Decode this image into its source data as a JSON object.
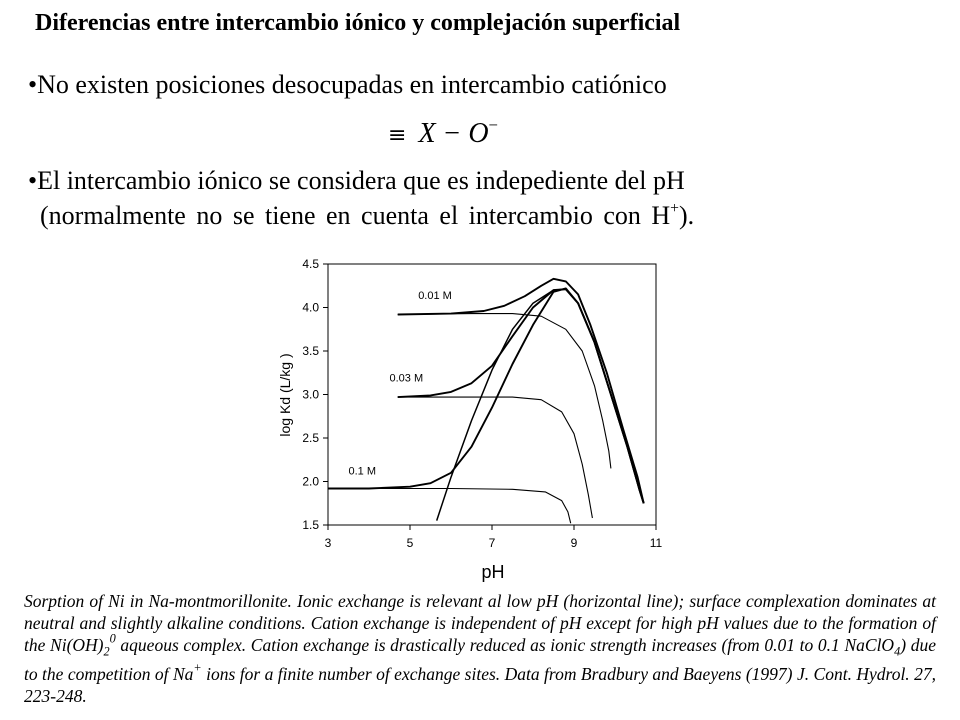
{
  "heading": "Diferencias entre intercambio iónico y complejación superficial",
  "bullets": {
    "b1": "•No existen posiciones desocupadas en intercambio catiónico",
    "b2_line1": "•El intercambio iónico se considera que es indepediente del pH",
    "b2_line2_prefix": "(normalmente no se tiene en cuenta el intercambio con H",
    "b2_line2_sup": "+",
    "b2_line2_suffix": ")."
  },
  "formula": {
    "symbol": "≡",
    "expr": "X − O",
    "sup": "−"
  },
  "caption": {
    "part1": "Sorption of Ni in Na-montmorillonite. Ionic exchange is relevant al low pH (horizontal line); surface complexation dominates at neutral and slightly alkaline conditions. Cation exchange is independent of pH except for high pH values due to the formation of the Ni(OH)",
    "sub1": "2",
    "sup1": "0",
    "part2": " aqueous complex. Cation exchange is drastically reduced as ionic strength increases (from 0.01 to 0.1 NaClO",
    "sub2": "4",
    "part3": ") due to the competition of Na",
    "sup2": "+",
    "part4": " ions for a finite number of exchange sites. Data from Bradbury and Baeyens (1997) J. Cont. Hydrol. 27, 223-248."
  },
  "chart_data": {
    "type": "line",
    "xlabel": "pH",
    "ylabel": "log Kd (L/kg )",
    "xlim": [
      3,
      11
    ],
    "ylim": [
      1.5,
      4.5
    ],
    "xticks": [
      "3",
      "5",
      "7",
      "9",
      "11"
    ],
    "yticks": [
      "1.5",
      "2.0",
      "2.5",
      "3.0",
      "3.5",
      "4.0",
      "4.5"
    ],
    "grid": false,
    "legend": "none",
    "annotations": [
      {
        "text": "0.01 M",
        "x": 5.2,
        "y": 4.1
      },
      {
        "text": "0.03 M",
        "x": 4.5,
        "y": 3.15
      },
      {
        "text": "0.1 M",
        "x": 3.5,
        "y": 2.08
      }
    ],
    "series": [
      {
        "style": "total",
        "points": [
          [
            4.7,
            3.92
          ],
          [
            6.0,
            3.93
          ],
          [
            6.8,
            3.96
          ],
          [
            7.3,
            4.02
          ],
          [
            7.8,
            4.13
          ],
          [
            8.2,
            4.25
          ],
          [
            8.5,
            4.33
          ],
          [
            8.8,
            4.3
          ],
          [
            9.1,
            4.15
          ],
          [
            9.4,
            3.8
          ],
          [
            9.8,
            3.25
          ],
          [
            10.2,
            2.6
          ],
          [
            10.55,
            2.05
          ],
          [
            10.7,
            1.75
          ]
        ]
      },
      {
        "style": "total",
        "points": [
          [
            4.7,
            2.97
          ],
          [
            5.5,
            2.99
          ],
          [
            6.0,
            3.03
          ],
          [
            6.5,
            3.13
          ],
          [
            7.0,
            3.33
          ],
          [
            7.5,
            3.67
          ],
          [
            8.0,
            4.0
          ],
          [
            8.5,
            4.2
          ],
          [
            8.8,
            4.21
          ],
          [
            9.1,
            4.05
          ],
          [
            9.5,
            3.6
          ],
          [
            9.9,
            3.0
          ],
          [
            10.3,
            2.4
          ],
          [
            10.6,
            1.9
          ],
          [
            10.7,
            1.75
          ]
        ]
      },
      {
        "style": "total",
        "points": [
          [
            3.0,
            1.92
          ],
          [
            4.0,
            1.92
          ],
          [
            5.0,
            1.94
          ],
          [
            5.5,
            1.98
          ],
          [
            6.0,
            2.1
          ],
          [
            6.5,
            2.4
          ],
          [
            7.0,
            2.85
          ],
          [
            7.5,
            3.35
          ],
          [
            8.0,
            3.8
          ],
          [
            8.5,
            4.18
          ],
          [
            8.8,
            4.22
          ],
          [
            9.1,
            4.05
          ],
          [
            9.5,
            3.6
          ],
          [
            9.9,
            3.0
          ],
          [
            10.3,
            2.4
          ],
          [
            10.6,
            1.9
          ],
          [
            10.7,
            1.75
          ]
        ]
      },
      {
        "style": "exchange",
        "points": [
          [
            4.7,
            3.92
          ],
          [
            6.5,
            3.93
          ],
          [
            7.5,
            3.93
          ],
          [
            8.2,
            3.9
          ],
          [
            8.8,
            3.75
          ],
          [
            9.2,
            3.5
          ],
          [
            9.5,
            3.1
          ],
          [
            9.7,
            2.7
          ],
          [
            9.85,
            2.35
          ],
          [
            9.9,
            2.15
          ]
        ]
      },
      {
        "style": "exchange",
        "points": [
          [
            4.7,
            2.97
          ],
          [
            6.5,
            2.97
          ],
          [
            7.5,
            2.97
          ],
          [
            8.2,
            2.94
          ],
          [
            8.7,
            2.8
          ],
          [
            9.0,
            2.55
          ],
          [
            9.2,
            2.2
          ],
          [
            9.35,
            1.85
          ],
          [
            9.45,
            1.58
          ]
        ]
      },
      {
        "style": "exchange",
        "points": [
          [
            3.0,
            1.92
          ],
          [
            6.0,
            1.92
          ],
          [
            7.5,
            1.91
          ],
          [
            8.3,
            1.88
          ],
          [
            8.7,
            1.78
          ],
          [
            8.85,
            1.65
          ],
          [
            8.92,
            1.52
          ]
        ]
      },
      {
        "style": "complexation",
        "points": [
          [
            5.65,
            1.55
          ],
          [
            6.0,
            2.05
          ],
          [
            6.5,
            2.7
          ],
          [
            7.0,
            3.28
          ],
          [
            7.5,
            3.75
          ],
          [
            8.0,
            4.05
          ],
          [
            8.5,
            4.2
          ],
          [
            8.8,
            4.21
          ],
          [
            9.1,
            4.05
          ],
          [
            9.5,
            3.6
          ],
          [
            9.9,
            3.0
          ],
          [
            10.3,
            2.4
          ],
          [
            10.6,
            1.9
          ],
          [
            10.7,
            1.75
          ]
        ]
      }
    ]
  }
}
